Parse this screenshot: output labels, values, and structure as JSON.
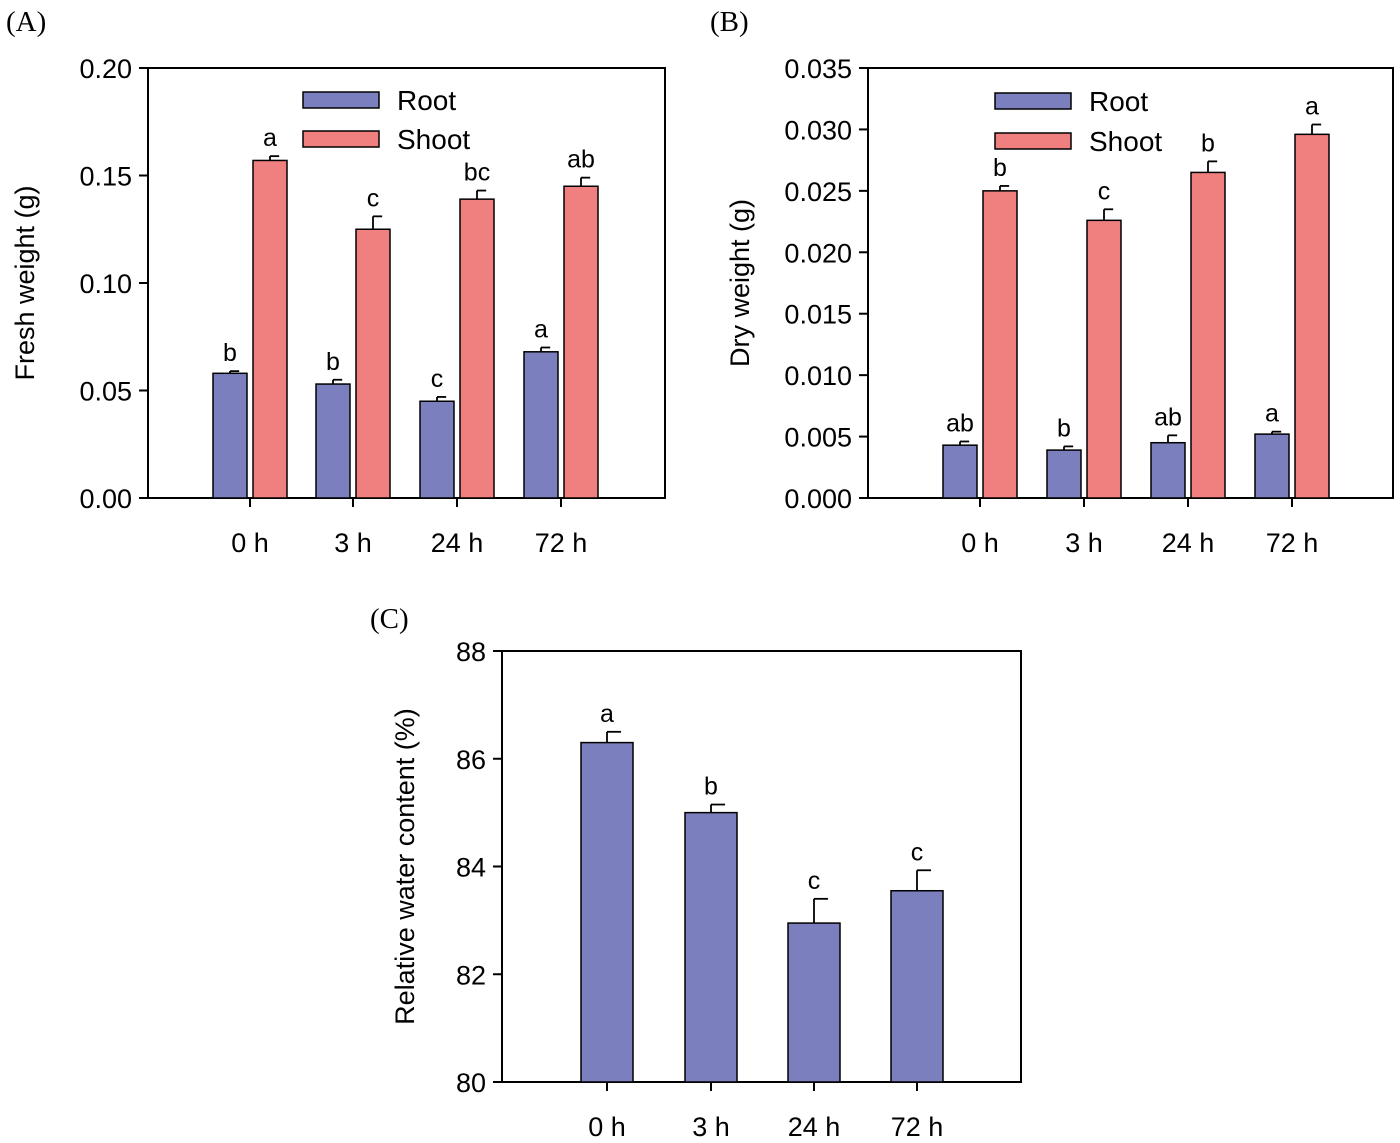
{
  "colors": {
    "root": "#7b7fbd",
    "shoot": "#f08080",
    "axis": "#000000"
  },
  "chart_data": [
    {
      "panel": "(A)",
      "type": "bar",
      "ylabel": "Fresh weight (g)",
      "xlabel": "",
      "categories": [
        "0 h",
        "3 h",
        "24 h",
        "72 h"
      ],
      "ylim": [
        0,
        0.2
      ],
      "yticks": [
        "0.00",
        "0.05",
        "0.10",
        "0.15",
        "0.20"
      ],
      "legend": "top-center",
      "series": [
        {
          "name": "Root",
          "color_key": "root",
          "values": [
            0.058,
            0.053,
            0.045,
            0.068
          ],
          "errors": [
            0.001,
            0.002,
            0.002,
            0.002
          ],
          "labels": [
            "b",
            "b",
            "c",
            "a"
          ]
        },
        {
          "name": "Shoot",
          "color_key": "shoot",
          "values": [
            0.157,
            0.125,
            0.139,
            0.145
          ],
          "errors": [
            0.002,
            0.006,
            0.004,
            0.004
          ],
          "labels": [
            "a",
            "c",
            "bc",
            "ab"
          ]
        }
      ]
    },
    {
      "panel": "(B)",
      "type": "bar",
      "ylabel": "Dry weight (g)",
      "xlabel": "",
      "categories": [
        "0 h",
        "3 h",
        "24 h",
        "72 h"
      ],
      "ylim": [
        0,
        0.035
      ],
      "yticks": [
        "0.000",
        "0.005",
        "0.010",
        "0.015",
        "0.020",
        "0.025",
        "0.030",
        "0.035"
      ],
      "legend": "top-center",
      "series": [
        {
          "name": "Root",
          "color_key": "root",
          "values": [
            0.0043,
            0.0039,
            0.0045,
            0.0052
          ],
          "errors": [
            0.0003,
            0.0003,
            0.0006,
            0.0002
          ],
          "labels": [
            "ab",
            "b",
            "ab",
            "a"
          ]
        },
        {
          "name": "Shoot",
          "color_key": "shoot",
          "values": [
            0.025,
            0.0226,
            0.0265,
            0.0296
          ],
          "errors": [
            0.0004,
            0.0009,
            0.0009,
            0.0008
          ],
          "labels": [
            "b",
            "c",
            "b",
            "a"
          ]
        }
      ]
    },
    {
      "panel": "(C)",
      "type": "bar",
      "ylabel": "Relative water content (%)",
      "xlabel": "",
      "categories": [
        "0 h",
        "3 h",
        "24 h",
        "72 h"
      ],
      "ylim": [
        80,
        88
      ],
      "yticks": [
        "80",
        "82",
        "84",
        "86",
        "88"
      ],
      "legend": "none",
      "series": [
        {
          "name": "",
          "color_key": "root",
          "values": [
            86.3,
            85.0,
            82.95,
            83.55
          ],
          "errors": [
            0.2,
            0.15,
            0.45,
            0.38
          ],
          "labels": [
            "a",
            "b",
            "c",
            "c"
          ]
        }
      ]
    }
  ]
}
